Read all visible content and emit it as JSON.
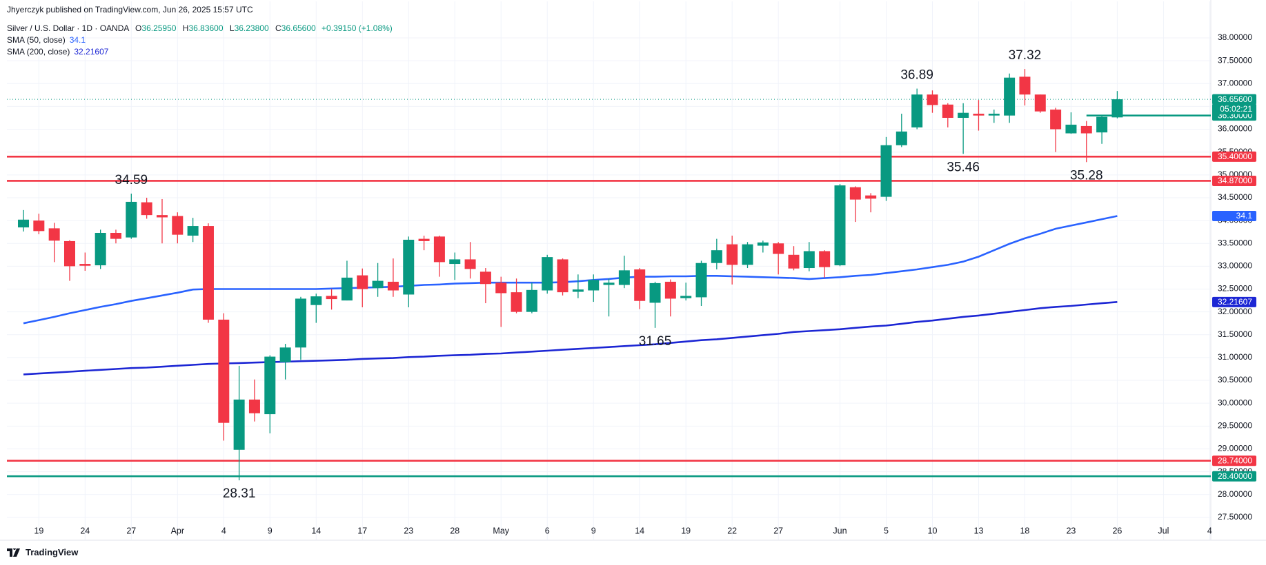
{
  "header": {
    "publisher": "Jhyerczyk published on TradingView.com, Jun 26, 2025 15:57 UTC",
    "symbol": "Silver / U.S. Dollar · 1D · OANDA",
    "ohlc": [
      {
        "key": "O",
        "value": "36.25950"
      },
      {
        "key": "H",
        "value": "36.83600"
      },
      {
        "key": "L",
        "value": "36.23800"
      },
      {
        "key": "C",
        "value": "36.65600"
      }
    ],
    "change": "+0.39150 (+1.08%)",
    "brand": "TradingView"
  },
  "chart_data": {
    "type": "candlestick",
    "up_color": "#089981",
    "down_color": "#f23645",
    "categories": [
      null,
      "19",
      null,
      null,
      "24",
      null,
      null,
      "27",
      null,
      null,
      "Apr",
      null,
      null,
      "4",
      null,
      null,
      "9",
      null,
      null,
      "14",
      null,
      null,
      "17",
      null,
      null,
      "23",
      null,
      null,
      "28",
      null,
      null,
      "May",
      null,
      null,
      "6",
      null,
      null,
      "9",
      null,
      null,
      "14",
      null,
      null,
      "19",
      null,
      null,
      "22",
      null,
      null,
      "27",
      null,
      null,
      null,
      "Jun",
      null,
      null,
      "5",
      null,
      null,
      "10",
      null,
      null,
      "13",
      null,
      null,
      "18",
      null,
      null,
      "23",
      null,
      null,
      "26",
      null,
      null,
      "Jul",
      null,
      null,
      "4"
    ],
    "open": [
      33.85,
      34.0,
      33.83,
      33.55,
      33.05,
      33.02,
      33.73,
      33.63,
      34.4,
      34.12,
      34.1,
      33.67,
      33.88,
      31.83,
      28.98,
      30.08,
      29.76,
      30.9,
      31.22,
      32.15,
      32.35,
      32.25,
      32.8,
      32.52,
      32.66,
      32.38,
      33.6,
      33.65,
      33.05,
      33.15,
      32.88,
      32.64,
      32.43,
      32.0,
      32.47,
      33.15,
      32.44,
      32.47,
      32.59,
      32.59,
      32.93,
      32.2,
      32.66,
      32.3,
      32.32,
      33.07,
      33.48,
      33.03,
      33.45,
      33.5,
      33.25,
      32.96,
      33.33,
      33.02,
      34.73,
      34.55,
      34.52,
      35.65,
      36.04,
      36.76,
      36.54,
      36.25,
      36.34,
      36.3,
      36.3,
      37.15,
      36.76,
      36.43,
      35.91,
      36.07,
      35.93,
      36.2595,
      null,
      null,
      null,
      null,
      null,
      null
    ],
    "high": [
      34.23,
      34.15,
      33.95,
      33.57,
      33.3,
      33.8,
      33.8,
      34.59,
      34.5,
      34.47,
      34.18,
      34.06,
      33.94,
      31.97,
      30.82,
      30.52,
      31.05,
      31.3,
      32.33,
      32.4,
      32.5,
      33.12,
      32.95,
      33.07,
      33.17,
      33.65,
      33.67,
      33.67,
      33.3,
      33.53,
      32.96,
      32.77,
      32.73,
      32.64,
      33.25,
      33.17,
      32.82,
      32.82,
      32.73,
      33.23,
      32.96,
      32.66,
      32.71,
      32.64,
      33.12,
      33.6,
      33.67,
      33.53,
      33.56,
      33.53,
      33.44,
      33.53,
      33.35,
      34.8,
      34.75,
      34.6,
      35.83,
      36.34,
      36.89,
      36.85,
      36.57,
      36.57,
      36.64,
      36.43,
      37.22,
      37.32,
      36.76,
      36.47,
      36.37,
      36.18,
      36.29,
      36.836,
      null,
      null,
      null,
      null,
      null,
      null
    ],
    "low": [
      33.76,
      33.7,
      33.09,
      32.68,
      32.9,
      32.94,
      33.5,
      33.6,
      34.04,
      33.5,
      33.5,
      33.53,
      31.76,
      29.18,
      28.31,
      29.6,
      29.34,
      30.52,
      30.95,
      31.76,
      32.05,
      32.25,
      32.1,
      32.33,
      32.33,
      32.1,
      33.35,
      32.77,
      32.7,
      32.73,
      32.19,
      31.67,
      31.97,
      31.97,
      32.4,
      32.36,
      32.3,
      32.22,
      31.9,
      32.52,
      32.06,
      31.65,
      31.9,
      32.25,
      32.13,
      32.93,
      32.6,
      32.96,
      33.3,
      32.82,
      32.91,
      32.89,
      32.75,
      33.0,
      33.97,
      34.18,
      34.43,
      35.61,
      36.0,
      36.36,
      36.04,
      35.46,
      35.97,
      36.14,
      36.14,
      36.52,
      36.36,
      35.5,
      35.9,
      35.28,
      35.68,
      36.238,
      null,
      null,
      null,
      null,
      null,
      null
    ],
    "close": [
      34.02,
      33.77,
      33.56,
      33.0,
      33.01,
      33.73,
      33.6,
      34.41,
      34.12,
      34.07,
      33.69,
      33.88,
      31.83,
      29.57,
      30.08,
      29.78,
      31.02,
      31.22,
      32.29,
      32.34,
      32.28,
      32.75,
      32.5,
      32.68,
      32.47,
      33.58,
      33.55,
      33.09,
      33.15,
      32.94,
      32.61,
      32.41,
      32.0,
      32.48,
      33.2,
      32.43,
      32.49,
      32.7,
      32.64,
      32.91,
      32.24,
      32.63,
      32.29,
      32.35,
      33.07,
      33.35,
      33.03,
      33.48,
      33.52,
      33.27,
      32.95,
      33.33,
      32.98,
      34.77,
      34.46,
      34.48,
      35.65,
      35.95,
      36.76,
      36.53,
      36.25,
      36.36,
      36.3,
      36.34,
      37.13,
      36.76,
      36.39,
      36.0,
      36.1,
      35.91,
      36.27,
      36.656,
      null,
      null,
      null,
      null,
      null,
      null
    ],
    "series": [
      {
        "name": "SMA (50, close)",
        "color": "#2962ff",
        "values": [
          31.75,
          31.82,
          31.89,
          31.97,
          32.04,
          32.11,
          32.17,
          32.24,
          32.3,
          32.36,
          32.42,
          32.49,
          32.5,
          32.5,
          32.5,
          32.5,
          32.5,
          32.5,
          32.5,
          32.5,
          32.51,
          32.52,
          32.53,
          32.54,
          32.55,
          32.57,
          32.59,
          32.6,
          32.62,
          32.63,
          32.64,
          32.64,
          32.64,
          32.64,
          32.64,
          32.65,
          32.67,
          32.7,
          32.72,
          32.75,
          32.77,
          32.77,
          32.78,
          32.78,
          32.79,
          32.79,
          32.78,
          32.77,
          32.76,
          32.75,
          32.74,
          32.72,
          32.74,
          32.76,
          32.79,
          32.81,
          32.85,
          32.89,
          32.93,
          32.98,
          33.03,
          33.1,
          33.21,
          33.35,
          33.49,
          33.61,
          33.71,
          33.82,
          33.89,
          33.96,
          34.03,
          34.1,
          null,
          null,
          null,
          null,
          null,
          null
        ]
      },
      {
        "name": "SMA (200, close)",
        "color": "#1c26d4",
        "values": [
          30.63,
          30.65,
          30.67,
          30.69,
          30.71,
          30.73,
          30.75,
          30.77,
          30.78,
          30.8,
          30.82,
          30.84,
          30.86,
          30.87,
          30.88,
          30.89,
          30.9,
          30.91,
          30.92,
          30.93,
          30.94,
          30.95,
          30.97,
          30.98,
          30.99,
          31.01,
          31.02,
          31.04,
          31.05,
          31.06,
          31.08,
          31.09,
          31.11,
          31.13,
          31.15,
          31.17,
          31.19,
          31.21,
          31.23,
          31.25,
          31.27,
          31.29,
          31.32,
          31.35,
          31.38,
          31.4,
          31.43,
          31.46,
          31.49,
          31.52,
          31.56,
          31.58,
          31.6,
          31.62,
          31.65,
          31.68,
          31.7,
          31.74,
          31.78,
          31.81,
          31.85,
          31.89,
          31.92,
          31.96,
          32.0,
          32.04,
          32.08,
          32.11,
          32.13,
          32.16,
          32.19,
          32.21607,
          null,
          null,
          null,
          null,
          null,
          null
        ]
      }
    ],
    "levels": [
      {
        "value": 35.4,
        "label": "35.40000",
        "color": "#f23645"
      },
      {
        "value": 34.87,
        "label": "34.87000",
        "color": "#f23645"
      },
      {
        "value": 28.74,
        "label": "28.74000",
        "color": "#f23645"
      },
      {
        "value": 28.4,
        "label": "28.40000",
        "color": "#089981"
      },
      {
        "value": 36.3,
        "label": "36.30000",
        "color": "#089981",
        "ray": true
      }
    ],
    "last_price_label": "36.65600",
    "countdown": "05:02:21",
    "annotations": [
      {
        "label": "34.59",
        "value": 34.59
      },
      {
        "label": "36.89",
        "value": 36.89
      },
      {
        "label": "37.32",
        "value": 37.32
      },
      {
        "label": "35.46",
        "value": 35.46
      },
      {
        "label": "35.28",
        "value": 35.28
      },
      {
        "label": "31.65",
        "value": 31.65
      },
      {
        "label": "28.31",
        "value": 28.31
      }
    ],
    "ylim": [
      27.0,
      38.8
    ],
    "yticks": [
      {
        "value": 27.5,
        "label": "27.50000"
      },
      {
        "value": 28,
        "label": "28.00000"
      },
      {
        "value": 28.5,
        "label": "28.50000"
      },
      {
        "value": 29,
        "label": "29.00000"
      },
      {
        "value": 29.5,
        "label": "29.50000"
      },
      {
        "value": 30,
        "label": "30.00000"
      },
      {
        "value": 30.5,
        "label": "30.50000"
      },
      {
        "value": 31,
        "label": "31.00000"
      },
      {
        "value": 31.5,
        "label": "31.50000"
      },
      {
        "value": 32,
        "label": "32.00000"
      },
      {
        "value": 32.5,
        "label": "32.50000"
      },
      {
        "value": 33,
        "label": "33.00000"
      },
      {
        "value": 33.5,
        "label": "33.50000"
      },
      {
        "value": 34,
        "label": "34.00000"
      },
      {
        "value": 34.5,
        "label": "34.50000"
      },
      {
        "value": 35,
        "label": "35.00000"
      },
      {
        "value": 35.5,
        "label": "35.50000"
      },
      {
        "value": 36,
        "label": "36.00000"
      },
      {
        "value": 36.5,
        "label": "36.50000"
      },
      {
        "value": 37,
        "label": "37.00000"
      },
      {
        "value": 37.5,
        "label": "37.50000"
      },
      {
        "value": 38,
        "label": "38.00000"
      }
    ],
    "grid": true
  }
}
